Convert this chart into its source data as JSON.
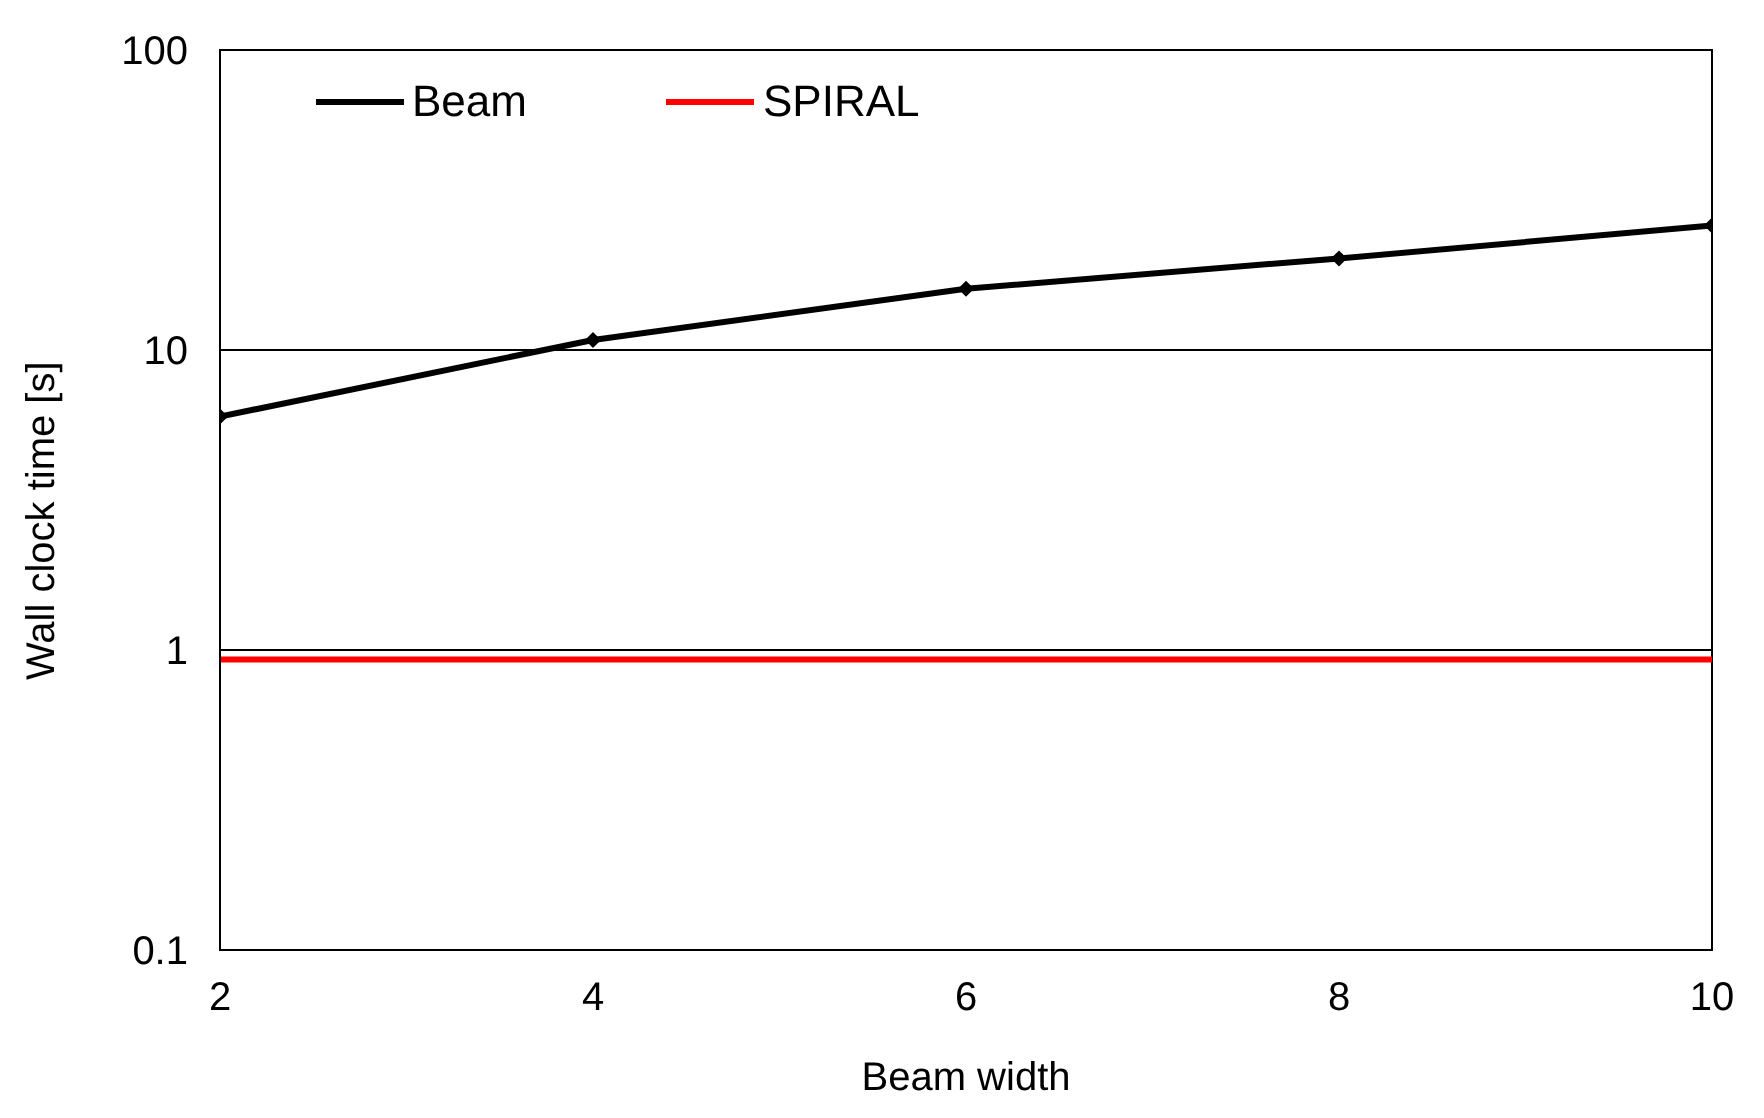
{
  "chart_data": {
    "type": "line",
    "xlabel": "Beam width",
    "ylabel": "Wall clock time [s]",
    "log": "y",
    "legend": "top left",
    "ref_lines": [
      {
        "axis": "y",
        "value": 10,
        "color": "#000000"
      },
      {
        "axis": "y",
        "value": 1,
        "color": "#000000"
      }
    ],
    "xlim": [
      2,
      10
    ],
    "xticks": [
      2,
      4,
      6,
      8,
      10
    ],
    "ylim": [
      0.1,
      100
    ],
    "yticks": [
      0.1,
      1,
      10,
      100
    ],
    "series": [
      {
        "name": "Beam",
        "color": "#000000",
        "marker": "diamond",
        "x": [
          2,
          4,
          6,
          8,
          10
        ],
        "values": [
          6,
          10.8,
          16,
          20.2,
          26
        ]
      },
      {
        "name": "SPIRAL",
        "color": "#ff0000",
        "marker": "none",
        "x": [
          2,
          10
        ],
        "values": [
          0.93,
          0.93
        ]
      }
    ]
  }
}
